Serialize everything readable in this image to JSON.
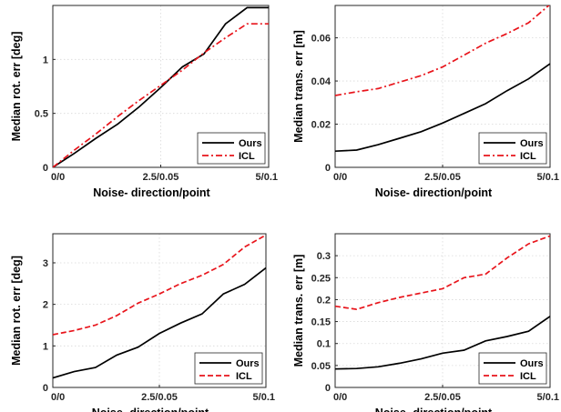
{
  "colors": {
    "ours": "#000000",
    "icl": "#e8141b"
  },
  "chart_data": [
    {
      "type": "line",
      "xlabel": "Noise- direction/point",
      "ylabel": "Median rot. err [deg]",
      "xlim": [
        0,
        10
      ],
      "ylim": [
        0,
        1.5
      ],
      "xticks": [
        0,
        5,
        10
      ],
      "xtick_labels": [
        "0/0",
        "2.5/0.05",
        "5/0.1"
      ],
      "yticks": [
        0,
        0.5,
        1
      ],
      "ytick_labels": [
        "0",
        "0.5",
        "1"
      ],
      "grid": true,
      "legend": "bottom-right",
      "x": [
        0,
        1,
        2,
        3,
        4,
        5,
        6,
        7,
        8,
        9,
        10
      ],
      "series": [
        {
          "name": "Ours",
          "style": "solid",
          "color": "#000000",
          "values": [
            0,
            0.13,
            0.27,
            0.4,
            0.56,
            0.74,
            0.93,
            1.05,
            1.33,
            1.48,
            1.48
          ]
        },
        {
          "name": "ICL",
          "style": "dashdot",
          "color": "#e8141b",
          "values": [
            0,
            0.16,
            0.31,
            0.47,
            0.62,
            0.76,
            0.9,
            1.06,
            1.2,
            1.33,
            1.33
          ]
        }
      ]
    },
    {
      "type": "line",
      "xlabel": "Noise- direction/point",
      "ylabel": "Median trans. err [m]",
      "xlim": [
        0,
        10
      ],
      "ylim": [
        0,
        0.075
      ],
      "xticks": [
        0,
        5,
        10
      ],
      "xtick_labels": [
        "0/0",
        "2.5/0.05",
        "5/0.1"
      ],
      "yticks": [
        0,
        0.02,
        0.04,
        0.06
      ],
      "ytick_labels": [
        "0",
        "0.02",
        "0.04",
        "0.06"
      ],
      "grid": true,
      "legend": "bottom-right",
      "x": [
        0,
        1,
        2,
        3,
        4,
        5,
        6,
        7,
        8,
        9,
        10
      ],
      "series": [
        {
          "name": "Ours",
          "style": "solid",
          "color": "#000000",
          "values": [
            0.0075,
            0.008,
            0.0105,
            0.0135,
            0.0165,
            0.0205,
            0.025,
            0.0295,
            0.0355,
            0.041,
            0.048
          ]
        },
        {
          "name": "ICL",
          "style": "dashdot",
          "color": "#e8141b",
          "values": [
            0.0333,
            0.035,
            0.0365,
            0.0395,
            0.0425,
            0.0465,
            0.052,
            0.0575,
            0.062,
            0.067,
            0.0755
          ]
        }
      ]
    },
    {
      "type": "line",
      "xlabel": "Noise- direction/point",
      "ylabel": "Median rot. err [deg]",
      "xlim": [
        0,
        10
      ],
      "ylim": [
        0,
        3.7
      ],
      "xticks": [
        0,
        5,
        10
      ],
      "xtick_labels": [
        "0/0",
        "2.5/0.05",
        "5/0.1"
      ],
      "yticks": [
        0,
        1,
        2,
        3
      ],
      "ytick_labels": [
        "0",
        "1",
        "2",
        "3"
      ],
      "grid": true,
      "legend": "bottom-right",
      "x": [
        0,
        1,
        2,
        3,
        4,
        5,
        6,
        7,
        8,
        9,
        10
      ],
      "series": [
        {
          "name": "Ours",
          "style": "solid",
          "color": "#000000",
          "values": [
            0.23,
            0.38,
            0.48,
            0.78,
            0.97,
            1.3,
            1.55,
            1.77,
            2.25,
            2.48,
            2.88
          ]
        },
        {
          "name": "ICL",
          "style": "dashed",
          "color": "#e8141b",
          "values": [
            1.27,
            1.37,
            1.5,
            1.73,
            2.03,
            2.25,
            2.5,
            2.7,
            2.96,
            3.38,
            3.67
          ]
        }
      ]
    },
    {
      "type": "line",
      "xlabel": "Noise- direction/point",
      "ylabel": "Median trans. err [m]",
      "xlim": [
        0,
        10
      ],
      "ylim": [
        0,
        0.35
      ],
      "xticks": [
        0,
        5,
        10
      ],
      "xtick_labels": [
        "0/0",
        "2.5/0.05",
        "5/0.1"
      ],
      "yticks": [
        0,
        0.05,
        0.1,
        0.15,
        0.2,
        0.25,
        0.3
      ],
      "ytick_labels": [
        "0",
        "0.05",
        "0.1",
        "0.15",
        "0.2",
        "0.25",
        "0.3"
      ],
      "grid": true,
      "legend": "bottom-right",
      "x": [
        0,
        1,
        2,
        3,
        4,
        5,
        6,
        7,
        8,
        9,
        10
      ],
      "series": [
        {
          "name": "Ours",
          "style": "solid",
          "color": "#000000",
          "values": [
            0.042,
            0.043,
            0.047,
            0.055,
            0.065,
            0.078,
            0.085,
            0.106,
            0.116,
            0.128,
            0.162
          ]
        },
        {
          "name": "ICL",
          "style": "dashed",
          "color": "#e8141b",
          "values": [
            0.185,
            0.178,
            0.193,
            0.205,
            0.215,
            0.225,
            0.25,
            0.258,
            0.295,
            0.327,
            0.345
          ]
        }
      ]
    }
  ]
}
